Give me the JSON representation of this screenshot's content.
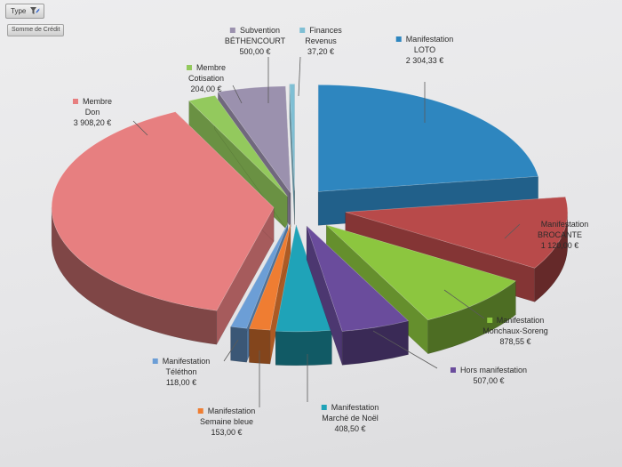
{
  "pivot": {
    "field_button": "Type",
    "filter_icon": "filter-icon",
    "value_button": "Somme de Crédit"
  },
  "chart_data": {
    "type": "pie",
    "title": "",
    "start_angle_deg": 90,
    "clockwise": true,
    "slices": [
      {
        "key": "loto",
        "lines": [
          "Manifestation",
          "LOTO"
        ],
        "value": 2304.33,
        "value_label": "2 304,33 €",
        "color": "#2e86bf"
      },
      {
        "key": "brocante",
        "lines": [
          "Manifestation",
          "BROCANTE"
        ],
        "value": 1120.0,
        "value_label": "1 120,00 €",
        "color": "#b84a4a"
      },
      {
        "key": "monchaux",
        "lines": [
          "Manifestation",
          "Monchaux-Soreng"
        ],
        "value": 878.55,
        "value_label": "878,55 €",
        "color": "#8cc63f"
      },
      {
        "key": "hors",
        "lines": [
          "Hors manifestation"
        ],
        "value": 507.0,
        "value_label": "507,00 €",
        "color": "#6a4c9c"
      },
      {
        "key": "noel",
        "lines": [
          "Manifestation",
          "Marché de Noël"
        ],
        "value": 408.5,
        "value_label": "408,50 €",
        "color": "#1fa3b8"
      },
      {
        "key": "semaine",
        "lines": [
          "Manifestation",
          "Semaine bleue"
        ],
        "value": 153.0,
        "value_label": "153,00 €",
        "color": "#ef7d32"
      },
      {
        "key": "telethon",
        "lines": [
          "Manifestation",
          "Téléthon"
        ],
        "value": 118.0,
        "value_label": "118,00 €",
        "color": "#6c9ed6"
      },
      {
        "key": "don",
        "lines": [
          "Membre",
          "Don"
        ],
        "value": 3908.2,
        "value_label": "3 908,20 €",
        "color": "#e77f80"
      },
      {
        "key": "cotisation",
        "lines": [
          "Membre",
          "Cotisation"
        ],
        "value": 204.0,
        "value_label": "204,00 €",
        "color": "#93c95d"
      },
      {
        "key": "subvention",
        "lines": [
          "Subvention",
          "BÉTHENCOURT"
        ],
        "value": 500.0,
        "value_label": "500,00 €",
        "color": "#9b91ae"
      },
      {
        "key": "finances",
        "lines": [
          "Finances",
          "Revenus"
        ],
        "value": 37.2,
        "value_label": "37,20 €",
        "color": "#7fbfd4"
      }
    ]
  }
}
